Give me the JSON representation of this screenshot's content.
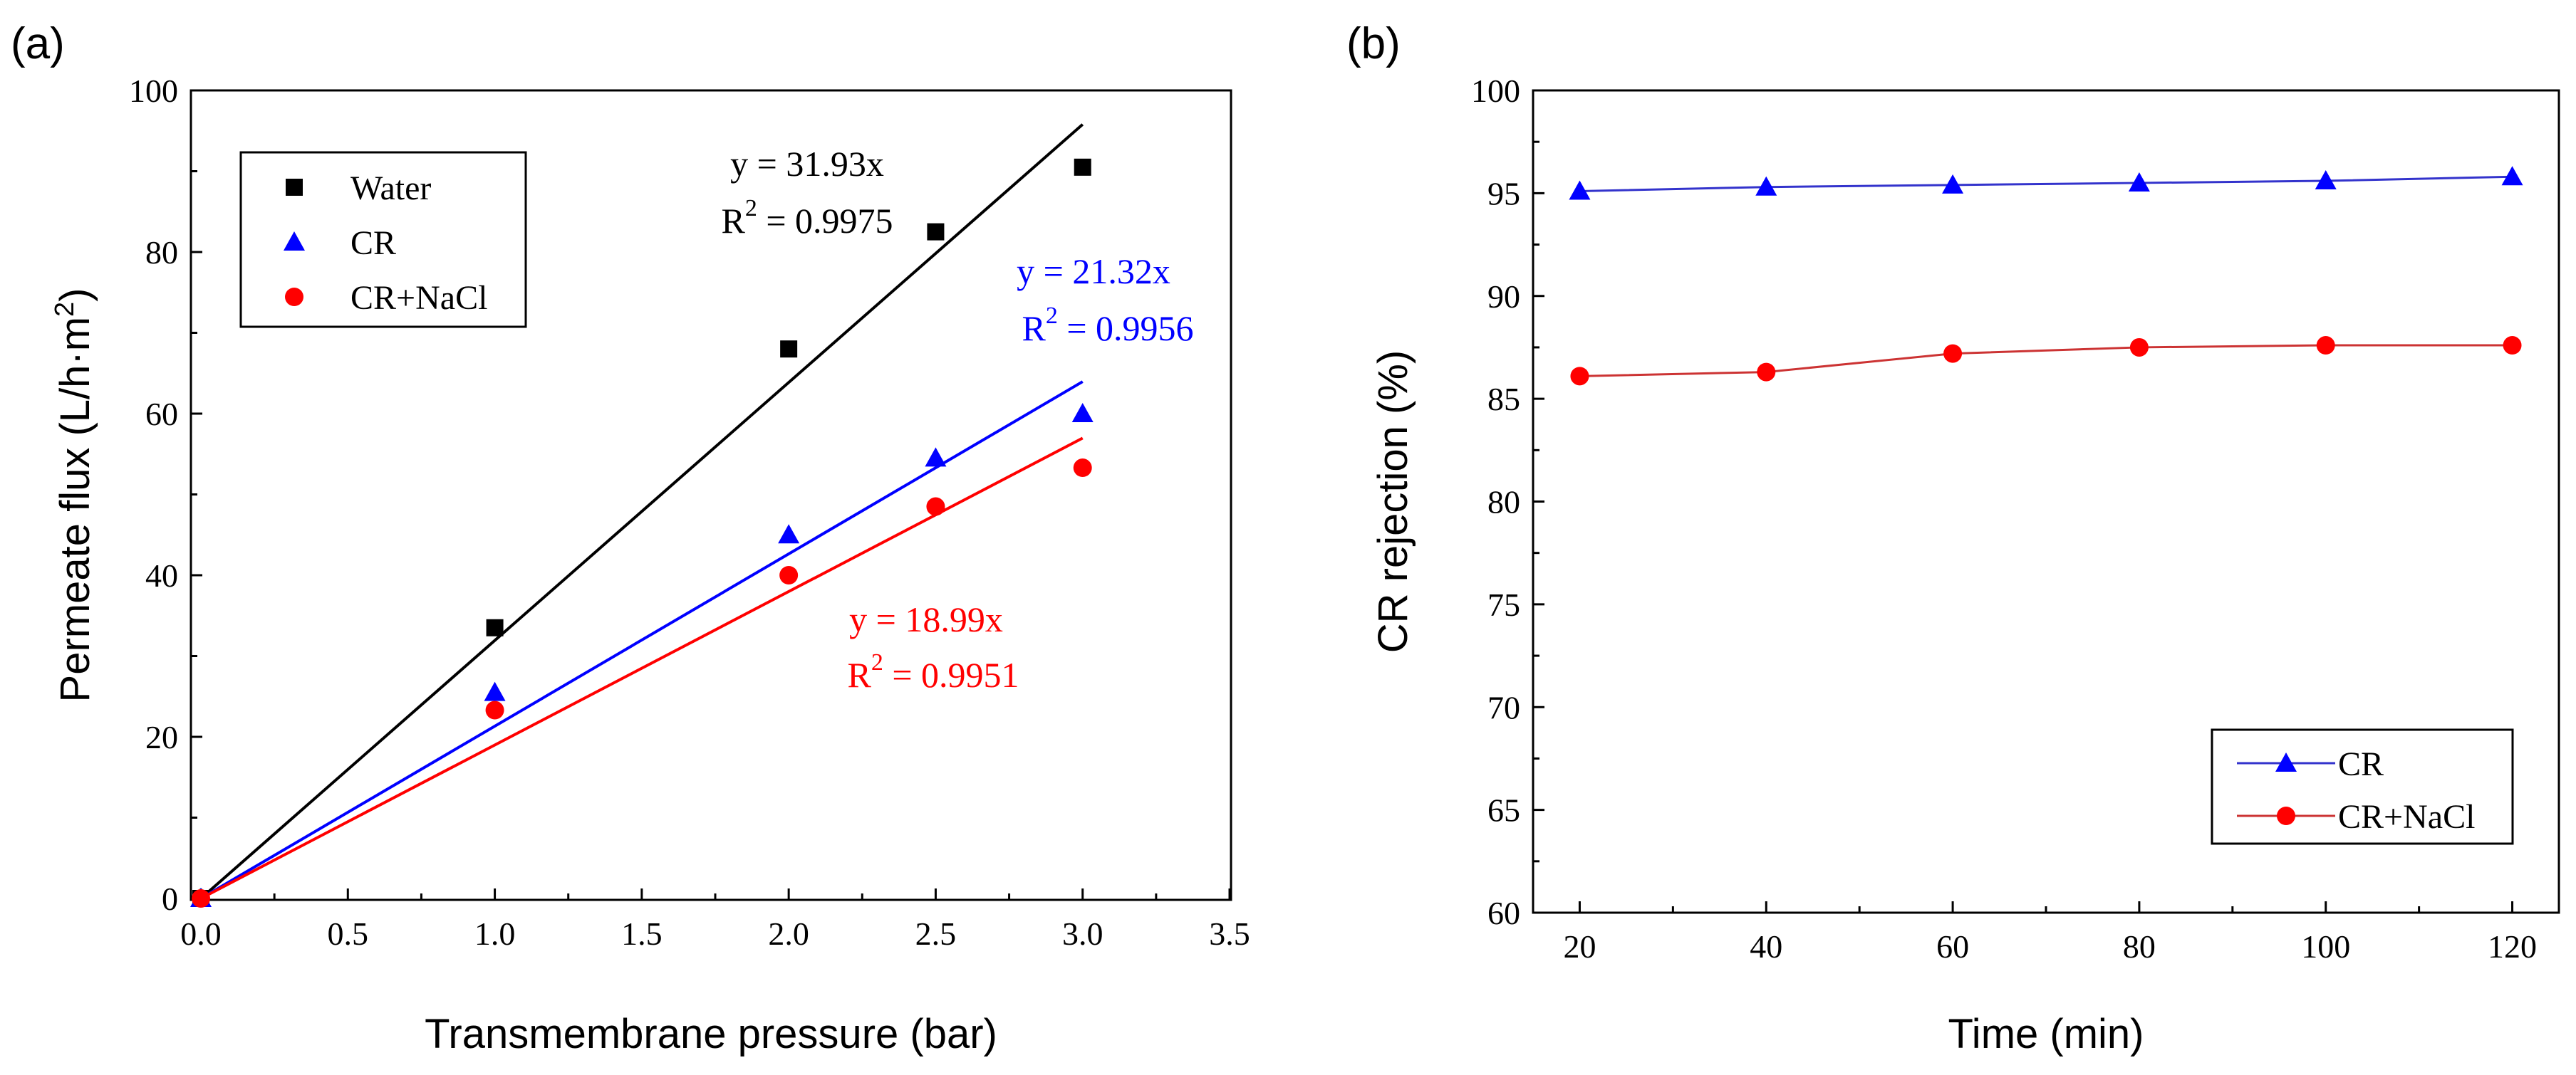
{
  "figure": {
    "panel_a_label": "(a)",
    "panel_b_label": "(b)"
  },
  "colors": {
    "water": "#000000",
    "cr": "#0000ff",
    "crnacl": "#ff0000",
    "cr_line": "#3333cc",
    "crnacl_line": "#cc3333"
  },
  "chart_data": [
    {
      "type": "scatter",
      "title": "",
      "xlabel": "Transmembrane pressure (bar)",
      "ylabel_main": "Permeate flux (L/h·m",
      "ylabel_sup": "2",
      "ylabel_close": ")",
      "xlim": [
        0,
        3.5
      ],
      "ylim": [
        0,
        100
      ],
      "xticks": [
        0.0,
        0.5,
        1.0,
        1.5,
        2.0,
        2.5,
        3.0,
        3.5
      ],
      "xtick_labels": [
        "0.0",
        "0.5",
        "1.0",
        "1.5",
        "2.0",
        "2.5",
        "3.0",
        "3.5"
      ],
      "yticks": [
        0,
        20,
        40,
        60,
        80,
        100
      ],
      "ytick_labels": [
        "0",
        "20",
        "40",
        "60",
        "80",
        "100"
      ],
      "legend_position": "top-left",
      "series": [
        {
          "name": "Water",
          "marker": "square",
          "color_key": "water",
          "x": [
            0,
            1.0,
            2.0,
            2.5,
            3.0
          ],
          "y": [
            0,
            33.5,
            68,
            82.5,
            90.5
          ],
          "fit_slope": 31.93,
          "fit_equation": "y = 31.93x",
          "r2_prefix": "R",
          "r2_sup": "2",
          "r2_value": " = 0.9975"
        },
        {
          "name": "CR",
          "marker": "triangle",
          "color_key": "cr",
          "x": [
            0,
            1.0,
            2.0,
            2.5,
            3.0
          ],
          "y": [
            0,
            25.5,
            45,
            54.5,
            60
          ],
          "fit_slope": 21.32,
          "fit_equation": "y = 21.32x",
          "r2_prefix": "R",
          "r2_sup": "2",
          "r2_value": " = 0.9956"
        },
        {
          "name": "CR+NaCl",
          "marker": "circle",
          "color_key": "crnacl",
          "x": [
            0,
            1.0,
            2.0,
            2.5,
            3.0
          ],
          "y": [
            0,
            23.3,
            40,
            48.5,
            53.3
          ],
          "fit_slope": 18.99,
          "fit_equation": "y = 18.99x",
          "r2_prefix": "R",
          "r2_sup": "2",
          "r2_value": " = 0.9951"
        }
      ]
    },
    {
      "type": "line",
      "title": "",
      "xlabel": "Time (min)",
      "ylabel": "CR rejection (%)",
      "xlim": [
        15,
        125
      ],
      "ylim": [
        60,
        100
      ],
      "xticks": [
        20,
        40,
        60,
        80,
        100,
        120
      ],
      "xtick_labels": [
        "20",
        "40",
        "60",
        "80",
        "100",
        "120"
      ],
      "yticks": [
        60,
        65,
        70,
        75,
        80,
        85,
        90,
        95,
        100
      ],
      "ytick_labels": [
        "60",
        "65",
        "70",
        "75",
        "80",
        "85",
        "90",
        "95",
        "100"
      ],
      "legend_position": "bottom-right",
      "series": [
        {
          "name": "CR",
          "marker": "triangle",
          "color_key": "cr",
          "x": [
            20,
            40,
            60,
            80,
            100,
            120
          ],
          "y": [
            95.1,
            95.3,
            95.4,
            95.5,
            95.6,
            95.8
          ]
        },
        {
          "name": "CR+NaCl",
          "marker": "circle",
          "color_key": "crnacl",
          "x": [
            20,
            40,
            60,
            80,
            100,
            120
          ],
          "y": [
            86.1,
            86.3,
            87.2,
            87.5,
            87.6,
            87.6
          ]
        }
      ]
    }
  ]
}
